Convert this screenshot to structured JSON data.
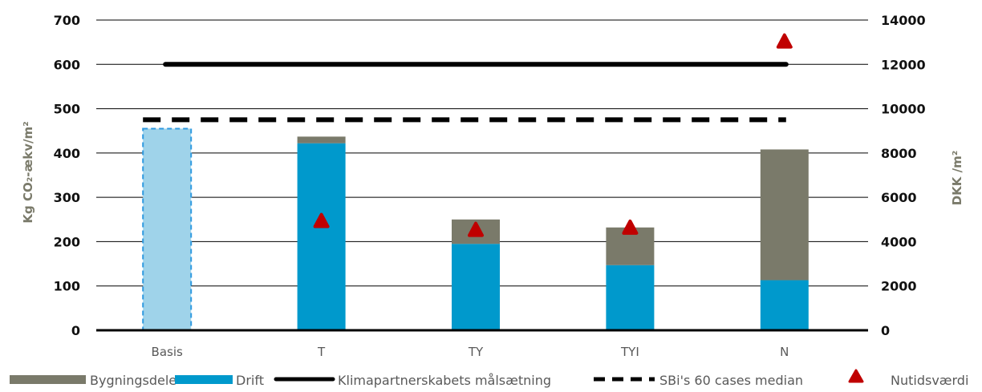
{
  "chart_data": {
    "type": "bar",
    "categories": [
      "Basis",
      "T",
      "TY",
      "TYI",
      "N"
    ],
    "ylabel_left": "Kg CO₂-ækv/m²",
    "ylabel_right": "DKK /m²",
    "ylim_left": [
      0,
      700
    ],
    "yticks_left": [
      0,
      100,
      200,
      300,
      400,
      500,
      600,
      700
    ],
    "ylim_right": [
      0,
      14000
    ],
    "yticks_right": [
      0,
      2000,
      4000,
      6000,
      8000,
      10000,
      12000,
      14000
    ],
    "grid": true,
    "legend_position": "bottom",
    "basis_bar": {
      "category": "Basis",
      "value": 455,
      "style": "dashed outline, light blue fill"
    },
    "series": [
      {
        "name": "Bygningsdele",
        "axis": "left",
        "stacked": true,
        "color": "#7a7a6a",
        "values": [
          null,
          15,
          55,
          85,
          295
        ]
      },
      {
        "name": "Drift",
        "axis": "left",
        "stacked": true,
        "color": "#0099cc",
        "values": [
          null,
          422,
          195,
          147,
          113
        ]
      },
      {
        "name": "Klimapartnerskabets målsætning",
        "axis": "left",
        "kind": "line",
        "style": "solid",
        "color": "#000000",
        "values": [
          600,
          600,
          600,
          600,
          600
        ]
      },
      {
        "name": "SBi's 60 cases median",
        "axis": "left",
        "kind": "line",
        "style": "dashed",
        "color": "#000000",
        "values": [
          475,
          475,
          475,
          475,
          475
        ]
      },
      {
        "name": "Nutidsværdi",
        "axis": "right",
        "kind": "marker",
        "marker": "triangle",
        "color": "#c00000",
        "values": [
          null,
          4900,
          4500,
          4600,
          13000
        ]
      }
    ],
    "colors": {
      "basis_fill": "#9fd3ea",
      "basis_outline": "#2f9ae0",
      "grid": "#000000"
    }
  }
}
